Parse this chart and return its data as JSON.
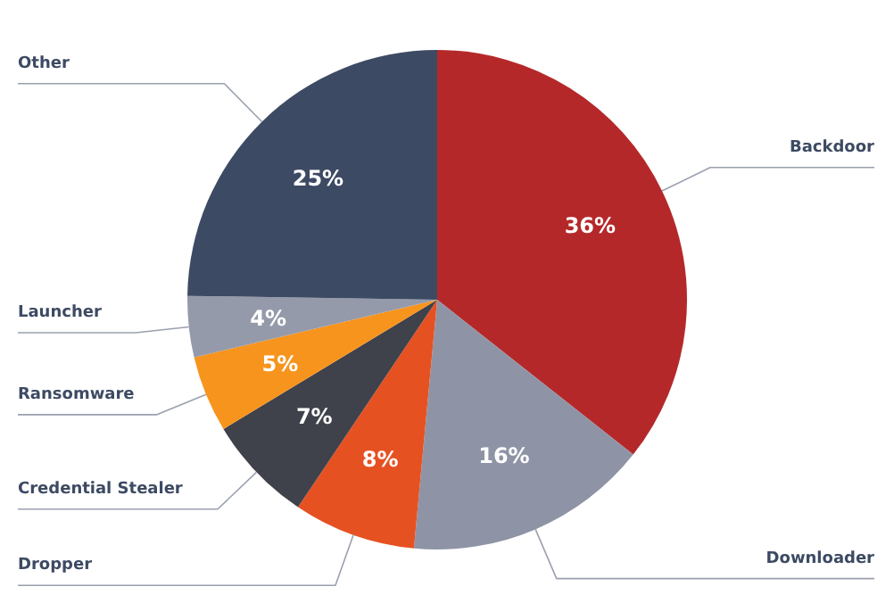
{
  "chart_data": {
    "type": "pie",
    "categories": [
      "Backdoor",
      "Downloader",
      "Dropper",
      "Credential Stealer",
      "Ransomware",
      "Launcher",
      "Other"
    ],
    "values": [
      36,
      16,
      8,
      7,
      5,
      4,
      25
    ],
    "value_labels": [
      "36%",
      "16%",
      "8%",
      "7%",
      "5%",
      "4%",
      "25%"
    ],
    "colors": [
      "#b5282a",
      "#8e94a5",
      "#e65122",
      "#3f414b",
      "#f7941d",
      "#959aab",
      "#3d4a63"
    ]
  }
}
